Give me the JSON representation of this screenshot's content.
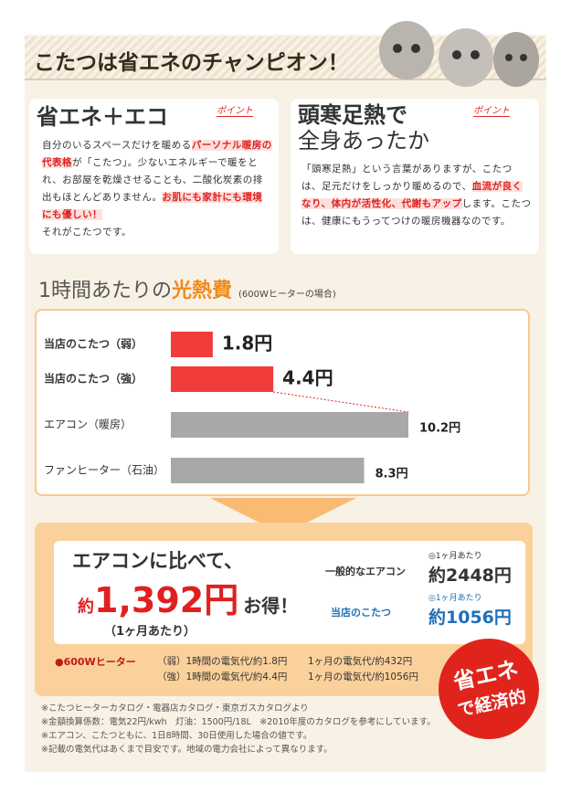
{
  "header": {
    "title": "こたつは省エネのチャンピオン！"
  },
  "points": [
    {
      "badge": "ポイント",
      "title": [
        "省エネ＋エコ"
      ],
      "body": [
        [
          {
            "text": "自分のいるスペースだけを暖める"
          },
          {
            "text": "パーソナル暖房の代表格",
            "marked": true
          },
          {
            "text": "が「こたつ」。少ないエネルギーで暖をとれ、お部屋を乾燥させることも、二酸化炭素の排出もほとんどありません。"
          },
          {
            "text": "お肌にも家計にも環境にも優しい！",
            "marked": true
          }
        ],
        [
          {
            "text": "それがこたつです。"
          }
        ]
      ]
    },
    {
      "badge": "ポイント",
      "title": [
        "頭寒足熱で",
        "全身あったか"
      ],
      "body": [
        [
          {
            "text": "「頭寒足熱」という言葉がありますが、こたつは、足元だけをしっかり暖めるので、"
          },
          {
            "text": "血流が良くなり、体内が活性化、代謝もアップ",
            "marked": true
          },
          {
            "text": "します。こたつは、健康にもうってつけの暖房機器なのです。"
          }
        ]
      ]
    }
  ],
  "chart_data": {
    "type": "bar",
    "title": [
      "1時間あたりの",
      "光熱費"
    ],
    "subtitle": "(600Wヒーターの場合)",
    "categories": [
      "当店のこたつ（弱）",
      "当店のこたつ（強）",
      "エアコン（暖房）",
      "ファンヒーター（石油）"
    ],
    "values": [
      1.8,
      4.4,
      10.2,
      8.3
    ],
    "value_labels": [
      "1.8円",
      "4.4円",
      "10.2円",
      "8.3円"
    ],
    "colors": [
      "#f23b3b",
      "#f23b3b",
      "#a8a8a8",
      "#a8a8a8"
    ]
  },
  "savings": {
    "lead": "エアコンに比べて、",
    "prefix": "約",
    "amount": "1,392円",
    "suffix": "お得！",
    "period": "（1ヶ月あたり）",
    "compare": [
      {
        "label": "一般的なエアコン",
        "note": "◎1ヶ月あたり",
        "price": "約2448円"
      },
      {
        "label": "当店のこたつ",
        "note": "◎1ヶ月あたり",
        "price": "約1056円"
      }
    ]
  },
  "heater": {
    "title": "●600Wヒーター",
    "rows": [
      [
        "（弱）1時間の電気代/約1.8円",
        "1ヶ月の電気代/約432円"
      ],
      [
        "（強）1時間の電気代/約4.4円",
        "1ヶ月の電気代/約1056円"
      ]
    ]
  },
  "badge": [
    "省エネ",
    "で経済的"
  ],
  "notes": [
    "※こたつヒーターカタログ・電器店カタログ・東京ガスカタログより",
    "※金額換算係数：電気22円/kwh　灯油：1500円/18L　※2010年度のカタログを参考にしています。",
    "※エアコン、こたつともに、1日8時間、30日使用した場合の値です。",
    "※記載の電気代はあくまで目安です。地域の電力会社によって異なります。"
  ]
}
